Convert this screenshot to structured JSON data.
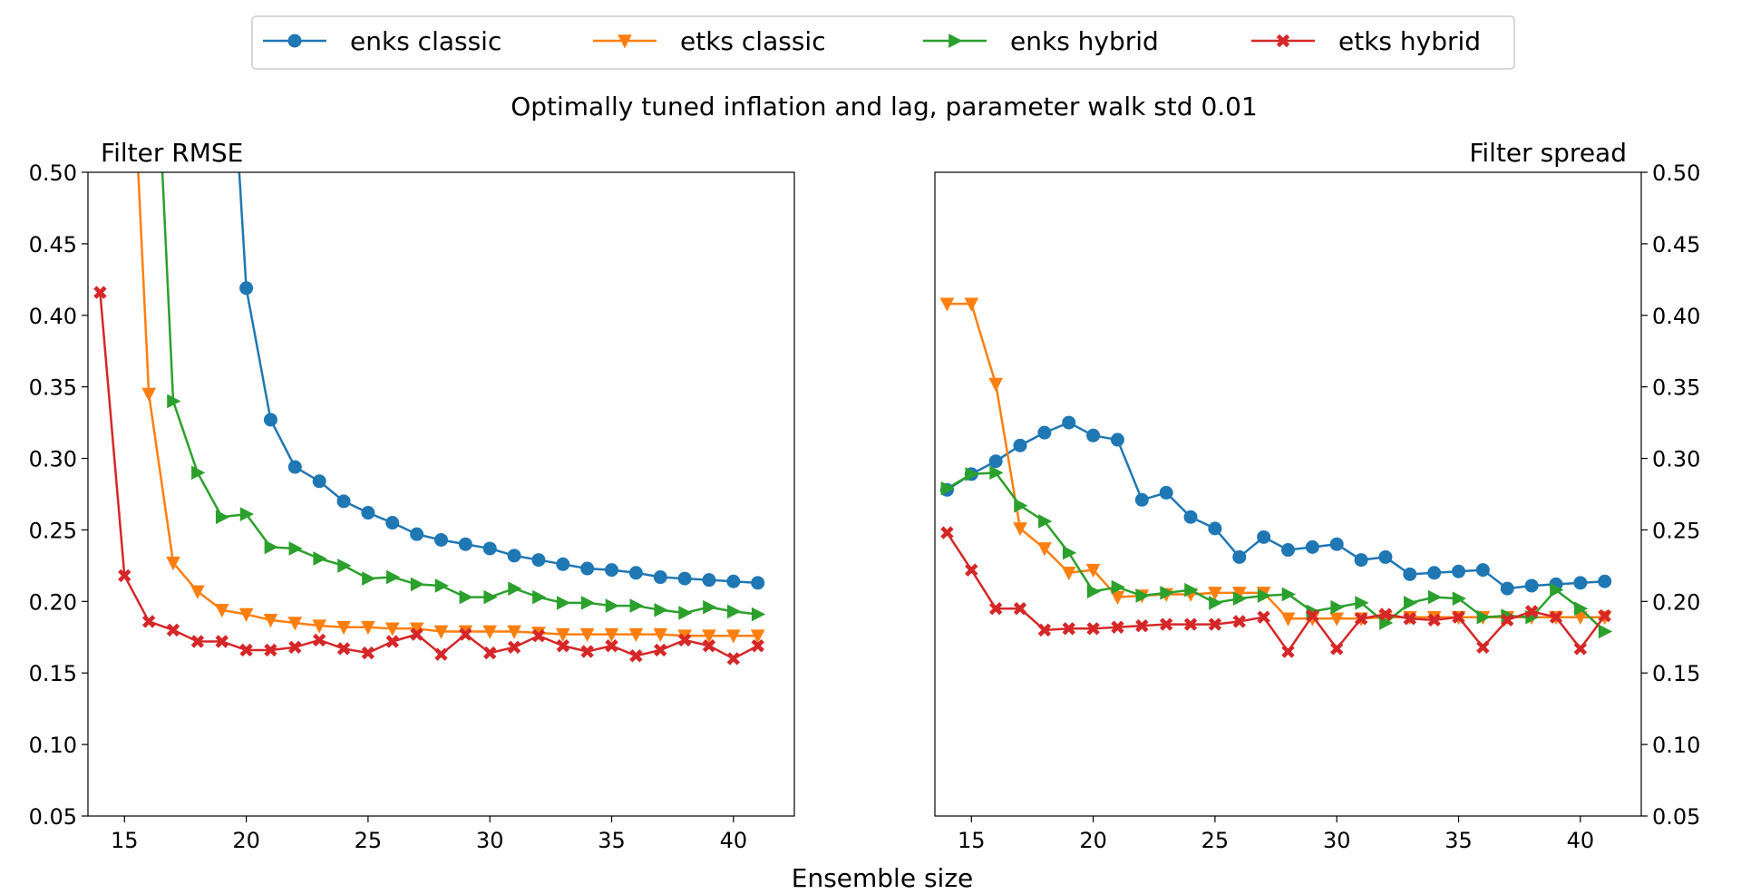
{
  "legend": {
    "items": [
      {
        "label": "enks classic",
        "color": "#1f77b4",
        "marker": "circle"
      },
      {
        "label": "etks classic",
        "color": "#ff7f0e",
        "marker": "triangle-down"
      },
      {
        "label": "enks hybrid",
        "color": "#2ca02c",
        "marker": "triangle-right"
      },
      {
        "label": "etks hybrid",
        "color": "#d62728",
        "marker": "x"
      }
    ]
  },
  "suptitle": "Optimally tuned inflation and lag, parameter walk std 0.01",
  "xlabel": "Ensemble size",
  "chart_data": [
    {
      "type": "line",
      "title": "Filter RMSE",
      "title_position": "left",
      "xlabel": "Ensemble size",
      "ylabel": "",
      "xlim": [
        13.5,
        42.5
      ],
      "ylim": [
        0.05,
        0.5
      ],
      "xticks": [
        15,
        20,
        25,
        30,
        35,
        40
      ],
      "yticks": [
        "0.05",
        "0.10",
        "0.15",
        "0.20",
        "0.25",
        "0.30",
        "0.35",
        "0.40",
        "0.45",
        "0.50"
      ],
      "yaxis_side": "left",
      "grid": false,
      "series": [
        {
          "name": "enks classic",
          "x": [
            19,
            20,
            21,
            22,
            23,
            24,
            25,
            26,
            27,
            28,
            29,
            30,
            31,
            32,
            33,
            34,
            35,
            36,
            37,
            38,
            39,
            40,
            41
          ],
          "y": [
            0.7,
            0.419,
            0.327,
            0.294,
            0.284,
            0.27,
            0.262,
            0.255,
            0.247,
            0.243,
            0.24,
            0.237,
            0.232,
            0.229,
            0.226,
            0.223,
            0.222,
            0.22,
            0.217,
            0.216,
            0.215,
            0.214,
            0.213
          ]
        },
        {
          "name": "etks classic",
          "x": [
            15,
            16,
            17,
            18,
            19,
            20,
            21,
            22,
            23,
            24,
            25,
            26,
            27,
            28,
            29,
            30,
            31,
            32,
            33,
            34,
            35,
            36,
            37,
            38,
            39,
            40,
            41
          ],
          "y": [
            0.7,
            0.345,
            0.227,
            0.207,
            0.194,
            0.191,
            0.187,
            0.185,
            0.183,
            0.182,
            0.182,
            0.181,
            0.181,
            0.179,
            0.179,
            0.179,
            0.179,
            0.178,
            0.177,
            0.177,
            0.177,
            0.177,
            0.177,
            0.176,
            0.176,
            0.176,
            0.176
          ]
        },
        {
          "name": "enks hybrid",
          "x": [
            16,
            17,
            18,
            19,
            20,
            21,
            22,
            23,
            24,
            25,
            26,
            27,
            28,
            29,
            30,
            31,
            32,
            33,
            34,
            35,
            36,
            37,
            38,
            39,
            40,
            41
          ],
          "y": [
            0.7,
            0.34,
            0.29,
            0.259,
            0.261,
            0.238,
            0.237,
            0.23,
            0.225,
            0.216,
            0.217,
            0.212,
            0.211,
            0.203,
            0.203,
            0.209,
            0.203,
            0.199,
            0.199,
            0.197,
            0.197,
            0.194,
            0.192,
            0.196,
            0.193,
            0.191
          ]
        },
        {
          "name": "etks hybrid",
          "x": [
            14,
            15,
            16,
            17,
            18,
            19,
            20,
            21,
            22,
            23,
            24,
            25,
            26,
            27,
            28,
            29,
            30,
            31,
            32,
            33,
            34,
            35,
            36,
            37,
            38,
            39,
            40,
            41
          ],
          "y": [
            0.416,
            0.218,
            0.186,
            0.18,
            0.172,
            0.172,
            0.166,
            0.166,
            0.168,
            0.173,
            0.167,
            0.164,
            0.172,
            0.177,
            0.163,
            0.177,
            0.164,
            0.168,
            0.176,
            0.169,
            0.165,
            0.169,
            0.162,
            0.166,
            0.173,
            0.169,
            0.16,
            0.169
          ]
        }
      ]
    },
    {
      "type": "line",
      "title": "Filter spread",
      "title_position": "right",
      "xlabel": "Ensemble size",
      "ylabel": "",
      "xlim": [
        13.5,
        42.5
      ],
      "ylim": [
        0.05,
        0.5
      ],
      "xticks": [
        15,
        20,
        25,
        30,
        35,
        40
      ],
      "yticks": [
        "0.05",
        "0.10",
        "0.15",
        "0.20",
        "0.25",
        "0.30",
        "0.35",
        "0.40",
        "0.45",
        "0.50"
      ],
      "yaxis_side": "right",
      "grid": false,
      "series": [
        {
          "name": "enks classic",
          "x": [
            14,
            15,
            16,
            17,
            18,
            19,
            20,
            21,
            22,
            23,
            24,
            25,
            26,
            27,
            28,
            29,
            30,
            31,
            32,
            33,
            34,
            35,
            36,
            37,
            38,
            39,
            40,
            41
          ],
          "y": [
            0.278,
            0.289,
            0.298,
            0.309,
            0.318,
            0.325,
            0.316,
            0.313,
            0.271,
            0.276,
            0.259,
            0.251,
            0.231,
            0.245,
            0.236,
            0.238,
            0.24,
            0.229,
            0.231,
            0.219,
            0.22,
            0.221,
            0.222,
            0.209,
            0.211,
            0.212,
            0.213,
            0.214
          ]
        },
        {
          "name": "etks classic",
          "x": [
            14,
            15,
            16,
            17,
            18,
            19,
            20,
            21,
            22,
            23,
            24,
            25,
            26,
            27,
            28,
            29,
            30,
            31,
            32,
            33,
            34,
            35,
            36,
            37,
            38,
            39,
            40,
            41
          ],
          "y": [
            0.408,
            0.408,
            0.352,
            0.251,
            0.237,
            0.22,
            0.222,
            0.203,
            0.204,
            0.205,
            0.205,
            0.206,
            0.206,
            0.206,
            0.188,
            0.188,
            0.188,
            0.188,
            0.189,
            0.189,
            0.189,
            0.189,
            0.189,
            0.189,
            0.189,
            0.189,
            0.189,
            0.189
          ]
        },
        {
          "name": "enks hybrid",
          "x": [
            14,
            15,
            16,
            17,
            18,
            19,
            20,
            21,
            22,
            23,
            24,
            25,
            26,
            27,
            28,
            29,
            30,
            31,
            32,
            33,
            34,
            35,
            36,
            37,
            38,
            39,
            40,
            41
          ],
          "y": [
            0.279,
            0.289,
            0.29,
            0.267,
            0.256,
            0.234,
            0.207,
            0.21,
            0.204,
            0.206,
            0.208,
            0.199,
            0.202,
            0.204,
            0.205,
            0.193,
            0.196,
            0.199,
            0.185,
            0.199,
            0.203,
            0.202,
            0.189,
            0.19,
            0.189,
            0.208,
            0.195,
            0.179
          ]
        },
        {
          "name": "etks hybrid",
          "x": [
            14,
            15,
            16,
            17,
            18,
            19,
            20,
            21,
            22,
            23,
            24,
            25,
            26,
            27,
            28,
            29,
            30,
            31,
            32,
            33,
            34,
            35,
            36,
            37,
            38,
            39,
            40,
            41
          ],
          "y": [
            0.248,
            0.222,
            0.195,
            0.195,
            0.18,
            0.181,
            0.181,
            0.182,
            0.183,
            0.184,
            0.184,
            0.184,
            0.186,
            0.189,
            0.165,
            0.19,
            0.167,
            0.188,
            0.191,
            0.188,
            0.187,
            0.189,
            0.168,
            0.187,
            0.193,
            0.189,
            0.167,
            0.19
          ]
        }
      ]
    }
  ]
}
